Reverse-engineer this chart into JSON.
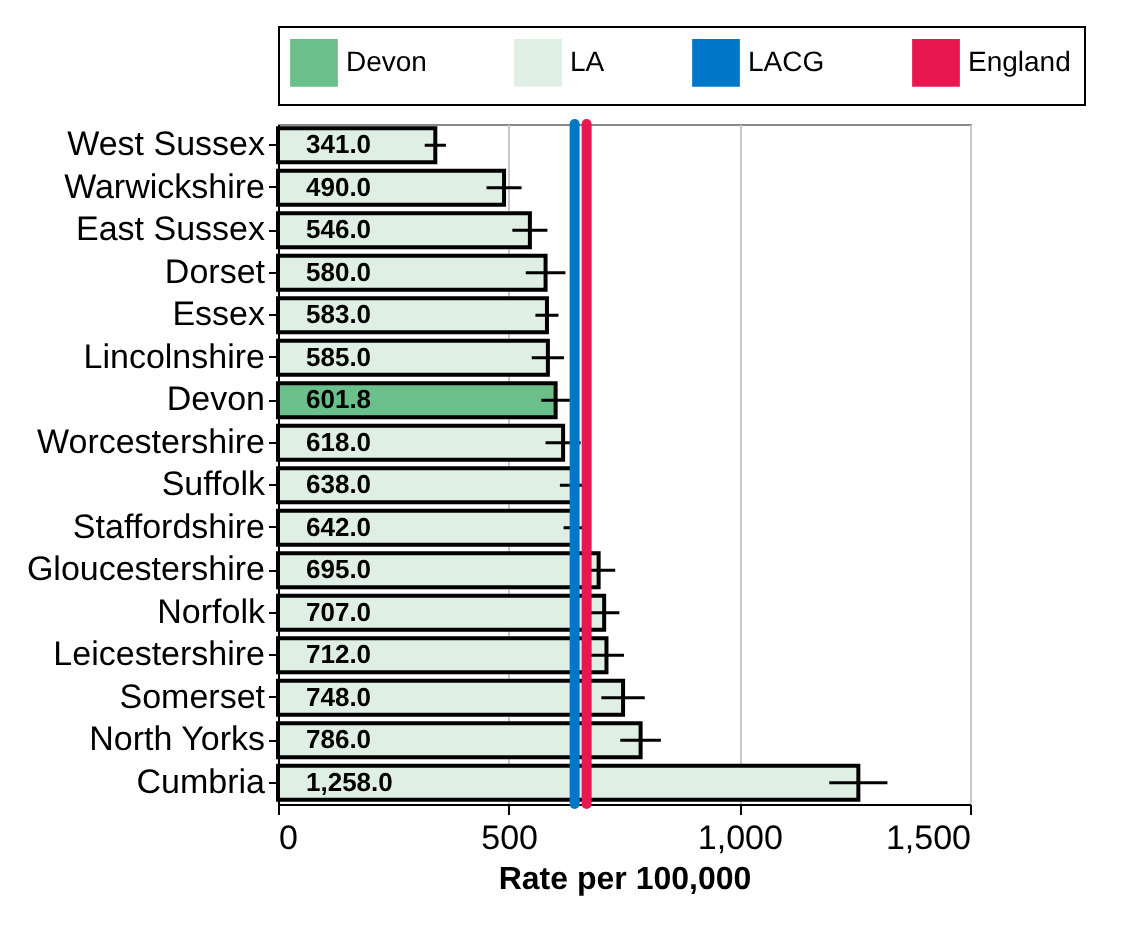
{
  "chart_data": {
    "type": "bar",
    "orientation": "horizontal",
    "xlabel": "Rate per 100,000",
    "categories": [
      "West Sussex",
      "Warwickshire",
      "East Sussex",
      "Dorset",
      "Essex",
      "Lincolnshire",
      "Devon",
      "Worcestershire",
      "Suffolk",
      "Staffordshire",
      "Gloucestershire",
      "Norfolk",
      "Leicestershire",
      "Somerset",
      "North Yorks",
      "Cumbria"
    ],
    "series": [
      {
        "name": "Devon",
        "color": "#6abf8a",
        "values": [
          null,
          null,
          null,
          null,
          null,
          null,
          601.8,
          null,
          null,
          null,
          null,
          null,
          null,
          null,
          null,
          null
        ],
        "errors": [
          null,
          null,
          null,
          null,
          null,
          null,
          31,
          null,
          null,
          null,
          null,
          null,
          null,
          null,
          null,
          null
        ],
        "value_labels": [
          null,
          null,
          null,
          null,
          null,
          null,
          "601.8",
          null,
          null,
          null,
          null,
          null,
          null,
          null,
          null,
          null
        ]
      },
      {
        "name": "LA",
        "color": "#e0efe3",
        "values": [
          341,
          490,
          546,
          580,
          583,
          585,
          null,
          618,
          638,
          642,
          695,
          707,
          712,
          748,
          786,
          1258
        ],
        "errors": [
          23,
          38,
          38,
          43,
          25,
          35,
          null,
          38,
          27,
          23,
          36,
          33,
          38,
          47,
          44,
          63
        ],
        "value_labels": [
          "341.0",
          "490.0",
          "546.0",
          "580.0",
          "583.0",
          "585.0",
          null,
          "618.0",
          "638.0",
          "642.0",
          "695.0",
          "707.0",
          "712.0",
          "748.0",
          "786.0",
          "1,258.0"
        ]
      }
    ],
    "ref_lines": [
      {
        "axis": "x",
        "value": 643,
        "label": "LACG",
        "color": "#0077c8"
      },
      {
        "axis": "x",
        "value": 669,
        "label": "England",
        "color": "#e8174f"
      }
    ],
    "xlim": [
      0,
      1500
    ],
    "xticks": [
      0,
      {
        "value": 500,
        "label": "500"
      },
      {
        "value": 1000,
        "label": "1,000"
      },
      {
        "value": 1500,
        "label": "1,500"
      }
    ],
    "grid": "x",
    "legend": "top"
  }
}
